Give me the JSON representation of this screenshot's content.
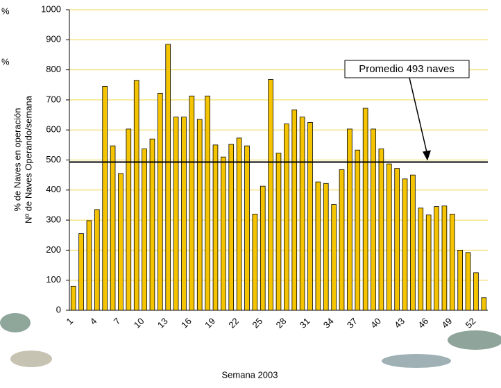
{
  "chart_data": {
    "type": "bar",
    "x_label": "Semana 2003",
    "y_label_lines": [
      "% de Naves en operación",
      "Nº de Naves Operando/semana"
    ],
    "side_labels": [
      "%",
      "%"
    ],
    "categories": [
      "1",
      null,
      null,
      "4",
      null,
      null,
      "7",
      null,
      null,
      "10",
      null,
      null,
      "13",
      null,
      null,
      "16",
      null,
      null,
      "19",
      null,
      null,
      "22",
      null,
      null,
      "25",
      null,
      null,
      "28",
      null,
      null,
      "31",
      null,
      null,
      "34",
      null,
      null,
      "37",
      null,
      null,
      "40",
      null,
      null,
      "43",
      null,
      null,
      "46",
      null,
      null,
      "49",
      null,
      null,
      "52",
      null
    ],
    "values": [
      80,
      255,
      298,
      335,
      745,
      547,
      455,
      603,
      765,
      537,
      570,
      722,
      885,
      643,
      643,
      713,
      635,
      713,
      550,
      510,
      552,
      573,
      547,
      320,
      413,
      768,
      523,
      620,
      667,
      643,
      625,
      427,
      422,
      352,
      468,
      603,
      533,
      672,
      603,
      537,
      487,
      472,
      437,
      450,
      340,
      317,
      345,
      347,
      320,
      200,
      192,
      125,
      42
    ],
    "color": "#f5c400",
    "ylim": [
      0,
      1000
    ],
    "yticks": [
      0,
      100,
      200,
      300,
      400,
      500,
      600,
      700,
      800,
      900,
      1000
    ],
    "grid": true,
    "grid_color": "#f2d64b",
    "reference_line": {
      "value": 493,
      "label": "Promedio 493 naves"
    }
  }
}
